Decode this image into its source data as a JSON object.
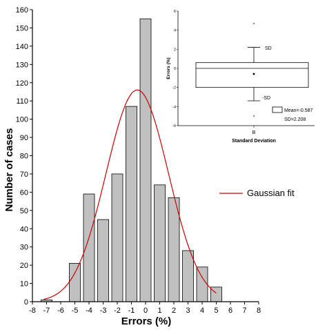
{
  "chart_data": [
    {
      "type": "bar",
      "xlabel": "Errors (%)",
      "ylabel": "Number of cases",
      "xlim": [
        -8,
        8
      ],
      "ylim": [
        0,
        160
      ],
      "x_ticks": [
        -8,
        -7,
        -6,
        -5,
        -4,
        -3,
        -2,
        -1,
        0,
        1,
        2,
        3,
        4,
        5,
        6,
        7,
        8
      ],
      "y_ticks": [
        0,
        10,
        20,
        30,
        40,
        50,
        60,
        70,
        80,
        90,
        100,
        110,
        120,
        130,
        140,
        150,
        160
      ],
      "bar_color": "#c0c0c0",
      "bins": [
        {
          "x": -7,
          "value": 1
        },
        {
          "x": -5,
          "value": 21
        },
        {
          "x": -4,
          "value": 59
        },
        {
          "x": -3,
          "value": 45
        },
        {
          "x": -2,
          "value": 70
        },
        {
          "x": -1,
          "value": 107
        },
        {
          "x": 0,
          "value": 155
        },
        {
          "x": 1,
          "value": 64
        },
        {
          "x": 2,
          "value": 57
        },
        {
          "x": 3,
          "value": 28
        },
        {
          "x": 4,
          "value": 19
        },
        {
          "x": 5,
          "value": 8
        }
      ],
      "fit": {
        "name": "Gaussian fit",
        "color": "#cc0000",
        "peak": 116,
        "center": -0.587,
        "sigma": 2.208,
        "x_range": [
          -7.2,
          5
        ]
      },
      "legend": {
        "placement": "right",
        "entries": [
          "Gaussian fit"
        ]
      }
    },
    {
      "type": "box",
      "xlabel": "Standard Deviation",
      "ylabel": "Errors (%)",
      "ylim": [
        -6,
        6
      ],
      "y_ticks": [
        -6,
        -4,
        -2,
        0,
        2,
        4,
        6
      ],
      "x_tick_label": "B",
      "box": {
        "q1": -2,
        "median": 0,
        "q3": 0.6
      },
      "whiskers": {
        "upper": 2.2,
        "lower": -3.4
      },
      "mean_point": -0.587,
      "outliers": [
        4.7,
        -5
      ],
      "annotations": {
        "upper": "SD",
        "lower": "-SD"
      },
      "legend": {
        "mean_label": "Mean=-0.587",
        "sd_label": "SD=2.208",
        "placement": "bottom-right"
      }
    }
  ]
}
